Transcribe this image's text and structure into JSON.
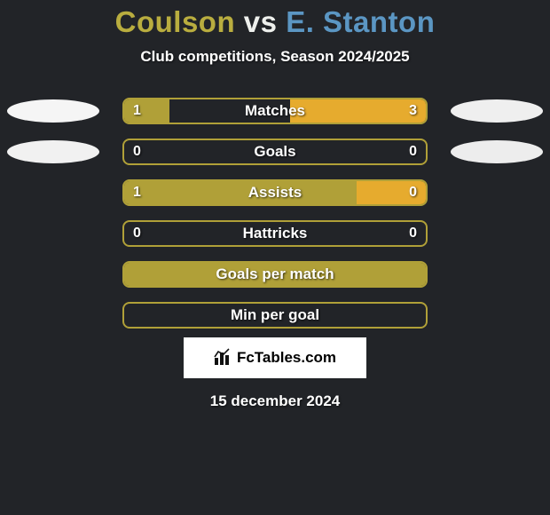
{
  "background_color": "#222428",
  "title": {
    "player1": "Coulson",
    "vs": "vs",
    "player2": "E. Stanton",
    "player1_color": "#b9ad3f",
    "vs_color": "#eef0ed",
    "player2_color": "#5b96c3"
  },
  "subtitle": "Club competitions, Season 2024/2025",
  "player1_accent": "#b0a038",
  "player2_accent": "#e6ab2e",
  "bar_border_color": "#b0a038",
  "badges": {
    "left": [
      {
        "bg": "#f5f5f5"
      },
      {
        "bg": "#f1f1f1"
      }
    ],
    "right": [
      {
        "bg": "#efefef"
      },
      {
        "bg": "#ededed"
      }
    ]
  },
  "rows": [
    {
      "label": "Matches",
      "left_value": "1",
      "right_value": "3",
      "left_fill_pct": 15,
      "right_fill_pct": 45,
      "left_fill_color": "#b0a038",
      "right_fill_color": "#e6ab2e",
      "show_left_badge": true,
      "show_right_badge": true,
      "badge_left_bg": "#f5f5f5",
      "badge_right_bg": "#efefef"
    },
    {
      "label": "Goals",
      "left_value": "0",
      "right_value": "0",
      "left_fill_pct": 0,
      "right_fill_pct": 0,
      "left_fill_color": "#b0a038",
      "right_fill_color": "#e6ab2e",
      "show_left_badge": true,
      "show_right_badge": true,
      "badge_left_bg": "#f1f1f1",
      "badge_right_bg": "#ededed"
    },
    {
      "label": "Assists",
      "left_value": "1",
      "right_value": "0",
      "left_fill_pct": 77,
      "right_fill_pct": 23,
      "left_fill_color": "#b0a038",
      "right_fill_color": "#e6ab2e",
      "show_left_badge": false,
      "show_right_badge": false
    },
    {
      "label": "Hattricks",
      "left_value": "0",
      "right_value": "0",
      "left_fill_pct": 0,
      "right_fill_pct": 0,
      "left_fill_color": "#b0a038",
      "right_fill_color": "#e6ab2e",
      "show_left_badge": false,
      "show_right_badge": false
    },
    {
      "label": "Goals per match",
      "left_value": "",
      "right_value": "",
      "left_fill_pct": 100,
      "right_fill_pct": 0,
      "left_fill_color": "#b0a038",
      "right_fill_color": "#e6ab2e",
      "show_left_badge": false,
      "show_right_badge": false
    },
    {
      "label": "Min per goal",
      "left_value": "",
      "right_value": "",
      "left_fill_pct": 0,
      "right_fill_pct": 0,
      "left_fill_color": "#b0a038",
      "right_fill_color": "#e6ab2e",
      "show_left_badge": false,
      "show_right_badge": false
    }
  ],
  "logo": {
    "text": "FcTables.com",
    "icon_name": "bars-icon"
  },
  "date": "15 december 2024"
}
